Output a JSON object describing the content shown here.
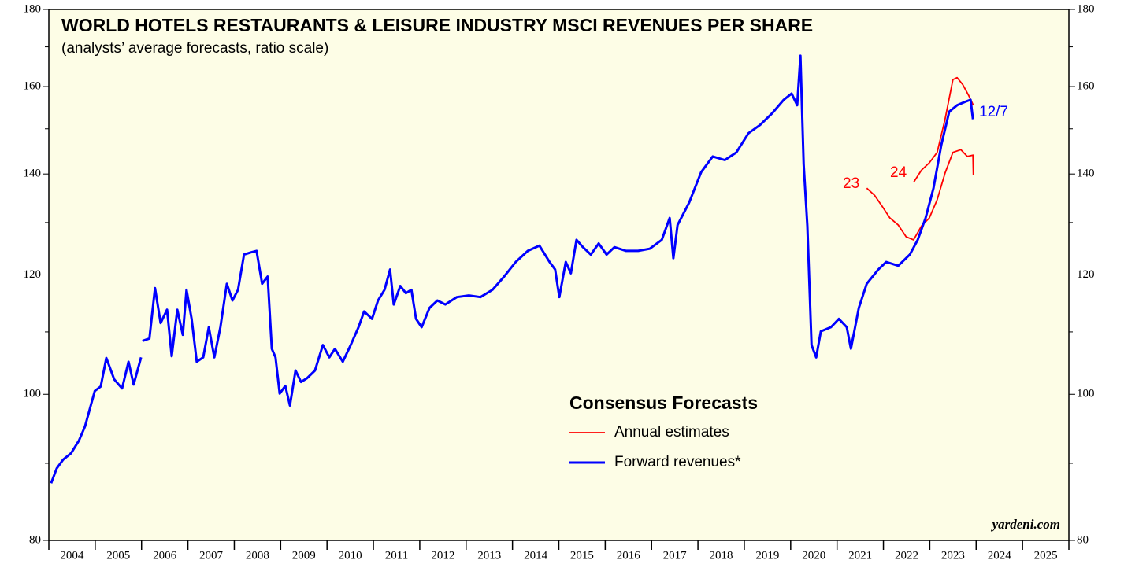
{
  "chart_data": {
    "type": "line",
    "title": "WORLD HOTELS RESTAURANTS & LEISURE INDUSTRY MSCI REVENUES PER SHARE",
    "subtitle": "(analysts’ average forecasts, ratio scale)",
    "legend_title": "Consensus Forecasts",
    "annotations": [
      "23",
      "24",
      "12/7"
    ],
    "source": "yardeni.com",
    "log_scale": true,
    "ylim": [
      80,
      180
    ],
    "yticks": [
      80,
      100,
      120,
      140,
      160,
      180
    ],
    "yticks_minor": [
      90,
      110,
      130,
      150,
      170
    ],
    "xlim": [
      2004,
      2026
    ],
    "xticks": [
      2004,
      2005,
      2006,
      2007,
      2008,
      2009,
      2010,
      2011,
      2012,
      2013,
      2014,
      2015,
      2016,
      2017,
      2018,
      2019,
      2020,
      2021,
      2022,
      2023,
      2024,
      2025,
      2026
    ],
    "year_labels": [
      "2004",
      "2005",
      "2006",
      "2007",
      "2008",
      "2009",
      "2010",
      "2011",
      "2012",
      "2013",
      "2014",
      "2015",
      "2016",
      "2017",
      "2018",
      "2019",
      "2020",
      "2021",
      "2022",
      "2023",
      "2024",
      "2025"
    ],
    "series": [
      {
        "name": "Annual estimates",
        "color": "#ff0000",
        "x": [
          2021.64,
          2021.81,
          2021.97,
          2022.14,
          2022.32,
          2022.49,
          2022.65,
          2022.82,
          2022.99,
          2023.16,
          2023.33,
          2023.5,
          2023.67,
          2023.81,
          2023.93,
          2023.94,
          null,
          2022.65,
          2022.82,
          2022.99,
          2023.16,
          2023.33,
          2023.5,
          2023.59,
          2023.71,
          2023.84,
          2023.94
        ],
        "values": [
          137,
          135.5,
          133.3,
          130.9,
          129.5,
          127.2,
          126.6,
          129.3,
          130.9,
          134.6,
          140.2,
          144.7,
          145.3,
          143.8,
          144.1,
          139.8,
          null,
          138.2,
          140.8,
          142.4,
          144.7,
          152.2,
          161.7,
          162.2,
          160.5,
          157.8,
          155.5
        ]
      },
      {
        "name": "Forward revenues*",
        "color": "#0000ff",
        "x": [
          2004.05,
          2004.17,
          2004.31,
          2004.48,
          2004.65,
          2004.78,
          2004.99,
          2005.12,
          2005.24,
          2005.41,
          2005.58,
          2005.72,
          2005.83,
          2005.99,
          null,
          2006.02,
          2006.17,
          2006.29,
          2006.41,
          2006.55,
          2006.65,
          2006.77,
          2006.89,
          2006.97,
          2007.08,
          2007.19,
          2007.33,
          2007.45,
          2007.57,
          2007.7,
          2007.84,
          2007.96,
          2008.08,
          2008.21,
          2008.35,
          2008.48,
          2008.6,
          2008.72,
          2008.81,
          2008.89,
          2008.98,
          2009.1,
          2009.2,
          2009.32,
          2009.44,
          2009.57,
          2009.74,
          2009.91,
          2010.05,
          2010.17,
          2010.34,
          2010.51,
          2010.68,
          2010.8,
          2010.97,
          2011.1,
          2011.24,
          2011.36,
          2011.44,
          2011.58,
          2011.7,
          2011.82,
          2011.92,
          2012.04,
          2012.21,
          2012.38,
          2012.55,
          2012.8,
          2013.06,
          2013.31,
          2013.57,
          2013.82,
          2014.07,
          2014.33,
          2014.58,
          2014.8,
          2014.92,
          2015.01,
          2015.15,
          2015.26,
          2015.38,
          2015.52,
          2015.69,
          2015.86,
          2016.03,
          2016.2,
          2016.45,
          2016.71,
          2016.96,
          2017.22,
          2017.39,
          2017.47,
          2017.56,
          2017.81,
          2018.07,
          2018.32,
          2018.58,
          2018.83,
          2019.09,
          2019.34,
          2019.6,
          2019.85,
          2020.02,
          2020.14,
          2020.21,
          2020.28,
          2020.36,
          2020.45,
          2020.55,
          2020.65,
          2020.87,
          2021.04,
          2021.21,
          2021.3,
          2021.47,
          2021.64,
          2021.89,
          2022.06,
          2022.32,
          2022.57,
          2022.74,
          2022.91,
          2023.08,
          2023.25,
          2023.42,
          2023.59,
          2023.76,
          2023.88,
          2023.93
        ],
        "values": [
          87.3,
          89.3,
          90.5,
          91.4,
          93.2,
          95.2,
          100.5,
          101.2,
          105.7,
          102.3,
          100.9,
          105.1,
          101.5,
          105.8,
          null,
          108.5,
          108.9,
          117.6,
          111.5,
          113.8,
          106,
          113.8,
          109.5,
          117.3,
          112.2,
          105.1,
          105.8,
          110.8,
          105.8,
          110.8,
          118.4,
          115.4,
          117.3,
          123.8,
          124.2,
          124.5,
          118.4,
          119.7,
          107.2,
          105.8,
          100.1,
          101.3,
          98.3,
          103.7,
          101.9,
          102.5,
          103.7,
          107.8,
          105.8,
          107.2,
          105.1,
          107.8,
          110.8,
          113.5,
          112.2,
          115.4,
          117.3,
          121,
          114.7,
          118,
          116.7,
          117.3,
          112.2,
          110.8,
          114.1,
          115.4,
          114.7,
          116,
          116.3,
          116,
          117.3,
          119.7,
          122.4,
          124.5,
          125.5,
          122.4,
          121,
          116,
          122.4,
          120.3,
          126.6,
          125.2,
          123.8,
          125.9,
          123.8,
          125.2,
          124.5,
          124.5,
          124.9,
          126.6,
          130.9,
          123.1,
          129.5,
          134,
          140.4,
          143.8,
          143,
          144.7,
          149,
          150.9,
          153.6,
          156.8,
          158.3,
          155.5,
          167.7,
          142.1,
          129.3,
          107.8,
          105.8,
          110.1,
          110.8,
          112.2,
          110.8,
          107.2,
          114.1,
          118.4,
          121,
          122.4,
          121.7,
          123.8,
          126.6,
          130.9,
          137,
          146.4,
          154,
          155.5,
          156.3,
          156.8,
          152.2
        ]
      }
    ]
  }
}
